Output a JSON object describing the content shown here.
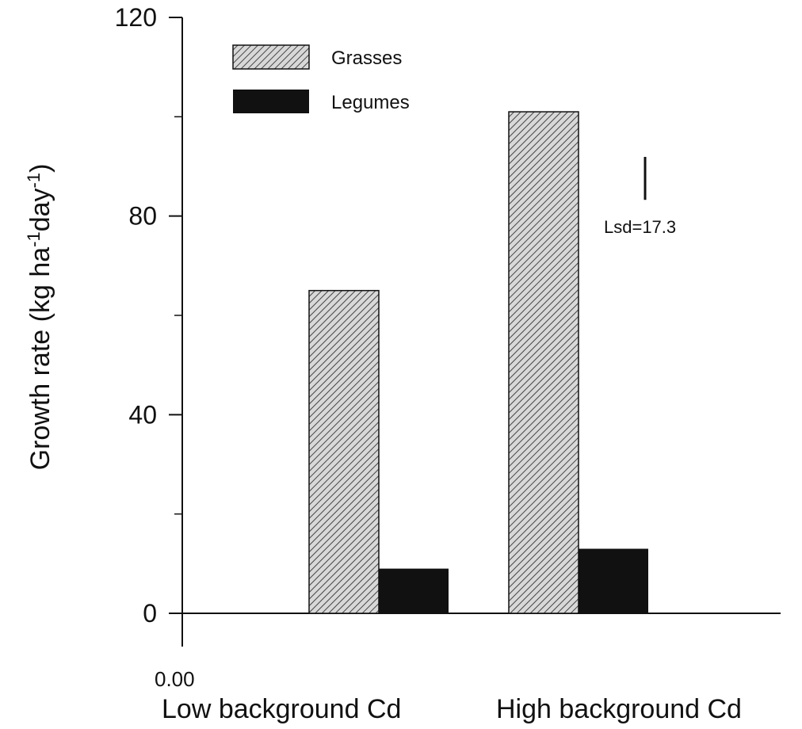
{
  "chart_data": {
    "type": "bar",
    "title": "",
    "ylabel": "Growth rate (kg ha",
    "ylabel_sup1": "-1",
    "ylabel_mid": "day",
    "ylabel_sup2": "-1",
    "ylabel_end": ")",
    "x_origin_label": "0.00",
    "categories": [
      "Low background Cd",
      "High background Cd"
    ],
    "series": [
      {
        "name": "Grasses",
        "values": [
          65,
          101
        ],
        "pattern": "hatch"
      },
      {
        "name": "Legumes",
        "values": [
          9,
          13
        ],
        "pattern": "solid"
      }
    ],
    "ylim": [
      0,
      120
    ],
    "yticks_major": [
      0,
      40,
      80,
      120
    ],
    "ytick_labels": [
      "0",
      "40",
      "80",
      "120"
    ],
    "yticks_minor": [
      20,
      60,
      100
    ],
    "grid": false,
    "legend_position": "top-left",
    "annotation": {
      "text": "Lsd=17.3",
      "lsd_value": 17.3
    },
    "colors": {
      "legumes": "#111111",
      "grasses_fill": "#d8d8d8",
      "grasses_hatch": "#444444",
      "axis": "#111111"
    }
  }
}
